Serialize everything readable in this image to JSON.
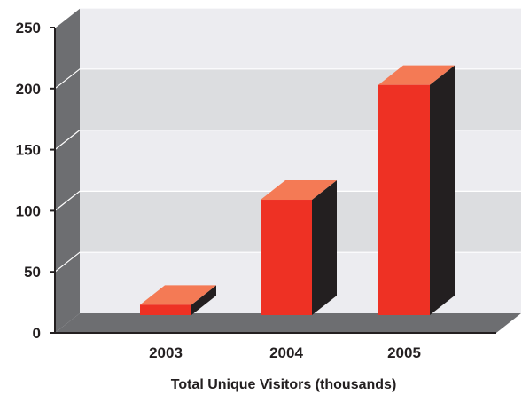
{
  "chart_data": {
    "type": "bar",
    "style": "3d",
    "categories": [
      "2003",
      "2004",
      "2005"
    ],
    "values": [
      23,
      109,
      203
    ],
    "title": "",
    "xlabel": "Total Unique Visitors (thousands)",
    "ylabel": "",
    "ylim": [
      0,
      250
    ],
    "yticks": [
      "0",
      "50",
      "100",
      "150",
      "200",
      "250"
    ],
    "grid": true,
    "colors": {
      "bar_front": "#ee3124",
      "bar_top": "#f47a55",
      "bar_side": "#231f20",
      "back_wall": "#ececf0",
      "back_wall_band": "#dcdde0",
      "side_wall": "#6d6e71",
      "floor": "#6d6e71"
    }
  }
}
